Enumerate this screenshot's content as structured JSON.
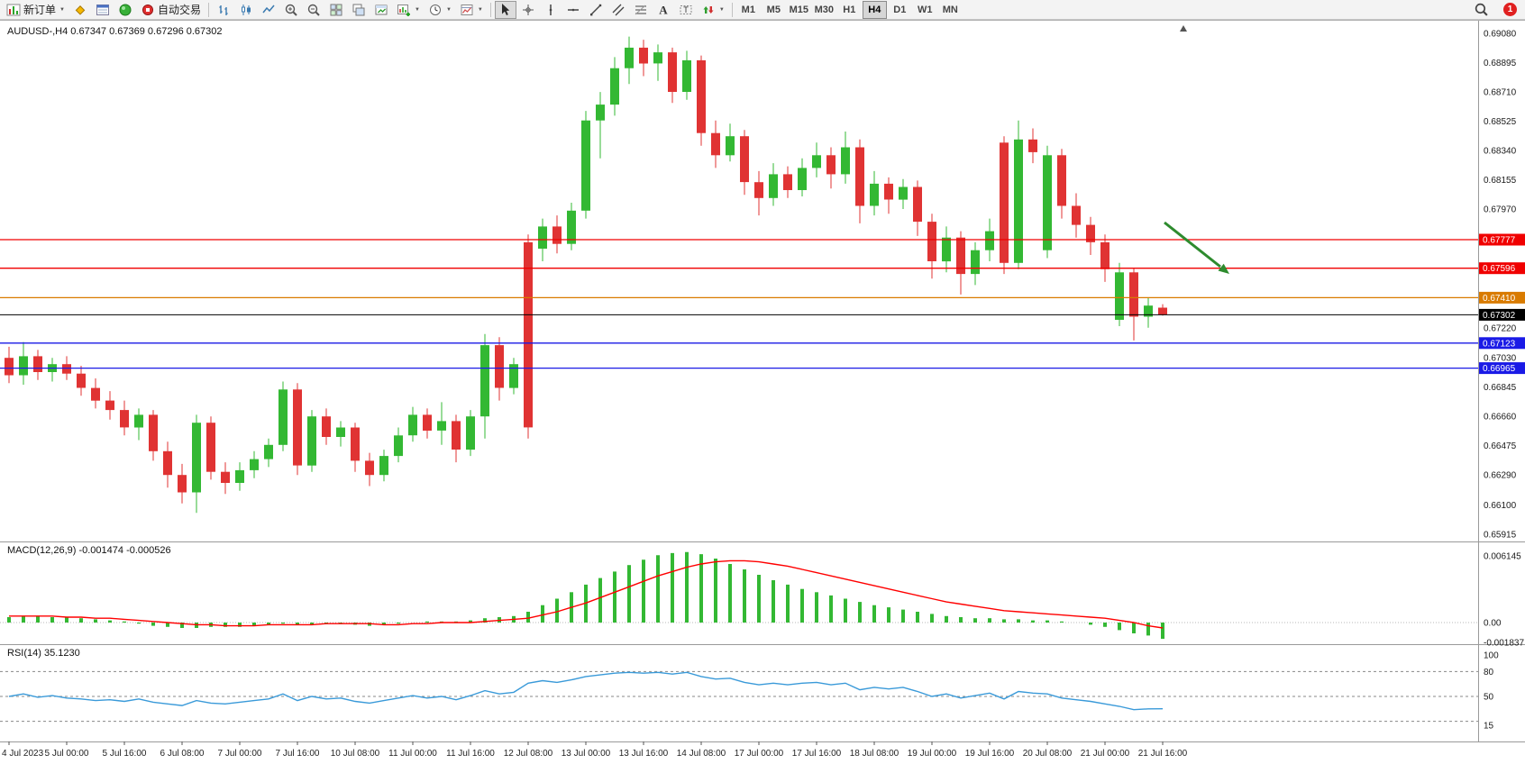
{
  "toolbar": {
    "new_order_label": "新订单",
    "auto_trading_label": "自动交易",
    "timeframes": [
      "M1",
      "M5",
      "M15",
      "M30",
      "H1",
      "H4",
      "D1",
      "W1",
      "MN"
    ],
    "active_timeframe": "H4",
    "notification_count": "1",
    "icon_names": [
      "new-order-icon",
      "market-watch-icon",
      "data-window-icon",
      "navigator-icon",
      "auto-trading-icon",
      "bar-chart-icon",
      "candlestick-chart-icon",
      "line-chart-icon",
      "zoom-in-icon",
      "zoom-out-icon",
      "tile-windows-icon",
      "cascade-windows-icon",
      "arrange-windows-icon",
      "new-chart-icon",
      "periods-icon",
      "templates-icon",
      "cursor-icon",
      "crosshair-icon",
      "vertical-line-icon",
      "horizontal-line-icon",
      "trendline-icon",
      "channel-icon",
      "fibonacci-icon",
      "text-icon",
      "label-icon",
      "arrows-icon",
      "search-icon"
    ]
  },
  "chart_data": {
    "type": "candlestick",
    "title": "AUDUSD-,H4 0.67347 0.67369 0.67296 0.67302",
    "symbol": "AUDUSD-",
    "timeframe": "H4",
    "current_bar": {
      "open": 0.67347,
      "high": 0.67369,
      "low": 0.67296,
      "close": 0.67302
    },
    "colors": {
      "up": "#33b833",
      "down": "#e03333",
      "macd_histogram": "#33b833",
      "macd_signal": "#ff0000",
      "rsi_line": "#3a9ad9",
      "hline_red": "#f00000",
      "hline_orange": "#d97b00",
      "hline_blue": "#1a1ae6",
      "current_price_line": "#000000",
      "annotation_arrow": "#2e8b2e"
    },
    "price_axis_labels": [
      "0.69080",
      "0.68895",
      "0.68710",
      "0.68525",
      "0.68340",
      "0.68155",
      "0.67970",
      "0.67220",
      "0.67030",
      "0.66845",
      "0.66660",
      "0.66475",
      "0.66290",
      "0.66100",
      "0.65915"
    ],
    "hlines": [
      {
        "price": 0.67777,
        "label": "0.67777",
        "color": "#f00000"
      },
      {
        "price": 0.67596,
        "label": "0.67596",
        "color": "#f00000"
      },
      {
        "price": 0.6741,
        "label": "0.67410",
        "color": "#d97b00"
      },
      {
        "price": 0.67302,
        "label": "0.67302",
        "color": "#000000",
        "is_current_price": true
      },
      {
        "price": 0.67123,
        "label": "0.67123",
        "color": "#1a1ae6"
      },
      {
        "price": 0.66965,
        "label": "0.66965",
        "color": "#1a1ae6"
      }
    ],
    "annotation_arrow": {
      "direction": "down-right",
      "color": "#2e8b2e"
    },
    "time_labels": [
      "4 Jul 2023",
      "5 Jul 00:00",
      "5 Jul 16:00",
      "6 Jul 08:00",
      "7 Jul 00:00",
      "7 Jul 16:00",
      "10 Jul 08:00",
      "11 Jul 00:00",
      "11 Jul 16:00",
      "12 Jul 08:00",
      "13 Jul 00:00",
      "13 Jul 16:00",
      "14 Jul 08:00",
      "17 Jul 00:00",
      "17 Jul 16:00",
      "18 Jul 08:00",
      "19 Jul 00:00",
      "19 Jul 16:00",
      "20 Jul 08:00",
      "21 Jul 00:00",
      "21 Jul 16:00"
    ],
    "bars_per_time_label": 4,
    "candles": [
      [
        0.6703,
        0.671,
        0.6687,
        0.6692
      ],
      [
        0.6692,
        0.6713,
        0.6686,
        0.6704
      ],
      [
        0.6704,
        0.6708,
        0.6689,
        0.6694
      ],
      [
        0.6694,
        0.6703,
        0.6688,
        0.6699
      ],
      [
        0.6699,
        0.6704,
        0.6689,
        0.6693
      ],
      [
        0.6693,
        0.6698,
        0.6679,
        0.6684
      ],
      [
        0.6684,
        0.669,
        0.6671,
        0.6676
      ],
      [
        0.6676,
        0.6682,
        0.6664,
        0.667
      ],
      [
        0.667,
        0.6676,
        0.6654,
        0.6659
      ],
      [
        0.6659,
        0.6671,
        0.6651,
        0.6667
      ],
      [
        0.6667,
        0.667,
        0.6638,
        0.6644
      ],
      [
        0.6644,
        0.665,
        0.6621,
        0.6629
      ],
      [
        0.6629,
        0.6636,
        0.6611,
        0.6618
      ],
      [
        0.6618,
        0.6667,
        0.6605,
        0.6662
      ],
      [
        0.6662,
        0.6666,
        0.6626,
        0.6631
      ],
      [
        0.6631,
        0.6637,
        0.6617,
        0.6624
      ],
      [
        0.6624,
        0.6637,
        0.6619,
        0.6632
      ],
      [
        0.6632,
        0.6644,
        0.6627,
        0.6639
      ],
      [
        0.6639,
        0.6652,
        0.6634,
        0.6648
      ],
      [
        0.6648,
        0.6688,
        0.6644,
        0.6683
      ],
      [
        0.6683,
        0.6687,
        0.6629,
        0.6635
      ],
      [
        0.6635,
        0.667,
        0.6631,
        0.6666
      ],
      [
        0.6666,
        0.6671,
        0.6648,
        0.6653
      ],
      [
        0.6653,
        0.6663,
        0.6647,
        0.6659
      ],
      [
        0.6659,
        0.6662,
        0.6631,
        0.6638
      ],
      [
        0.6638,
        0.6643,
        0.6622,
        0.6629
      ],
      [
        0.6629,
        0.6645,
        0.6625,
        0.6641
      ],
      [
        0.6641,
        0.6659,
        0.6637,
        0.6654
      ],
      [
        0.6654,
        0.6672,
        0.665,
        0.6667
      ],
      [
        0.6667,
        0.6671,
        0.6652,
        0.6657
      ],
      [
        0.6657,
        0.6675,
        0.6648,
        0.6663
      ],
      [
        0.6663,
        0.6667,
        0.6637,
        0.6645
      ],
      [
        0.6645,
        0.667,
        0.6641,
        0.6666
      ],
      [
        0.6666,
        0.6718,
        0.6652,
        0.6711
      ],
      [
        0.6711,
        0.6716,
        0.6676,
        0.6684
      ],
      [
        0.6684,
        0.6703,
        0.668,
        0.6699
      ],
      [
        0.6776,
        0.6781,
        0.6652,
        0.6659
      ],
      [
        0.6772,
        0.6791,
        0.6764,
        0.6786
      ],
      [
        0.6786,
        0.6793,
        0.6769,
        0.6775
      ],
      [
        0.6775,
        0.6801,
        0.6771,
        0.6796
      ],
      [
        0.6796,
        0.6859,
        0.6791,
        0.6853
      ],
      [
        0.6853,
        0.6871,
        0.6829,
        0.6863
      ],
      [
        0.6863,
        0.6893,
        0.6856,
        0.6886
      ],
      [
        0.6886,
        0.6906,
        0.6876,
        0.6899
      ],
      [
        0.6899,
        0.6904,
        0.6881,
        0.6889
      ],
      [
        0.6889,
        0.6901,
        0.6878,
        0.6896
      ],
      [
        0.6896,
        0.6899,
        0.6864,
        0.6871
      ],
      [
        0.6871,
        0.6897,
        0.6866,
        0.6891
      ],
      [
        0.6891,
        0.6894,
        0.6837,
        0.6845
      ],
      [
        0.6845,
        0.6853,
        0.6823,
        0.6831
      ],
      [
        0.6831,
        0.6851,
        0.6827,
        0.6843
      ],
      [
        0.6843,
        0.6847,
        0.6806,
        0.6814
      ],
      [
        0.6814,
        0.6821,
        0.6793,
        0.6804
      ],
      [
        0.6804,
        0.6826,
        0.6799,
        0.6819
      ],
      [
        0.6819,
        0.6824,
        0.6804,
        0.6809
      ],
      [
        0.6809,
        0.6829,
        0.6805,
        0.6823
      ],
      [
        0.6823,
        0.6839,
        0.6817,
        0.6831
      ],
      [
        0.6831,
        0.6836,
        0.681,
        0.6819
      ],
      [
        0.6819,
        0.6846,
        0.6813,
        0.6836
      ],
      [
        0.6836,
        0.6841,
        0.6788,
        0.6799
      ],
      [
        0.6799,
        0.6821,
        0.6793,
        0.6813
      ],
      [
        0.6813,
        0.6817,
        0.6794,
        0.6803
      ],
      [
        0.6803,
        0.6816,
        0.6797,
        0.6811
      ],
      [
        0.6811,
        0.6815,
        0.678,
        0.6789
      ],
      [
        0.6789,
        0.6794,
        0.6753,
        0.6764
      ],
      [
        0.6764,
        0.6786,
        0.6757,
        0.6779
      ],
      [
        0.6779,
        0.6783,
        0.6743,
        0.6756
      ],
      [
        0.6756,
        0.6776,
        0.6749,
        0.6771
      ],
      [
        0.6771,
        0.6791,
        0.6764,
        0.6783
      ],
      [
        0.6839,
        0.6843,
        0.6756,
        0.6763
      ],
      [
        0.6763,
        0.6853,
        0.6759,
        0.6841
      ],
      [
        0.6841,
        0.6848,
        0.6826,
        0.6833
      ],
      [
        0.6771,
        0.6837,
        0.6766,
        0.6831
      ],
      [
        0.6831,
        0.6835,
        0.6791,
        0.6799
      ],
      [
        0.6799,
        0.6807,
        0.6779,
        0.6787
      ],
      [
        0.6787,
        0.6792,
        0.6768,
        0.6776
      ],
      [
        0.6776,
        0.6781,
        0.6751,
        0.6759
      ],
      [
        0.6727,
        0.6763,
        0.6723,
        0.6757
      ],
      [
        0.6757,
        0.676,
        0.6714,
        0.6729
      ],
      [
        0.6729,
        0.6741,
        0.6722,
        0.6736
      ],
      [
        0.67347,
        0.67369,
        0.67296,
        0.67302
      ]
    ],
    "macd": {
      "label": "MACD(12,26,9) -0.001474 -0.000526",
      "value": -0.001474,
      "signal_value": -0.000526,
      "axis_labels": [
        "0.006145",
        "0.00",
        "-0.001837"
      ],
      "histogram": [
        0.0005,
        0.0006,
        0.0006,
        0.0005,
        0.0005,
        0.0004,
        0.0003,
        0.0002,
        0.0001,
        -0.0001,
        -0.0003,
        -0.0004,
        -0.0005,
        -0.0005,
        -0.0004,
        -0.0004,
        -0.0004,
        -0.0003,
        -0.0002,
        -0.0001,
        -0.0002,
        -0.0002,
        -0.0001,
        -0.0001,
        -0.0002,
        -0.0003,
        -0.0002,
        -0.0001,
        0.0,
        0.0001,
        0.0001,
        0.0001,
        0.0002,
        0.0004,
        0.0005,
        0.0006,
        0.001,
        0.0016,
        0.0022,
        0.0028,
        0.0035,
        0.0041,
        0.0047,
        0.0053,
        0.0058,
        0.0062,
        0.0064,
        0.0065,
        0.0063,
        0.0059,
        0.0054,
        0.0049,
        0.0044,
        0.0039,
        0.0035,
        0.0031,
        0.0028,
        0.0025,
        0.0022,
        0.0019,
        0.0016,
        0.0014,
        0.0012,
        0.001,
        0.0008,
        0.0006,
        0.0005,
        0.0004,
        0.0004,
        0.0003,
        0.0003,
        0.0002,
        0.0002,
        0.0001,
        0.0,
        -0.0002,
        -0.0004,
        -0.0007,
        -0.001,
        -0.0012,
        -0.0015
      ],
      "signal": [
        0.0006,
        0.0006,
        0.0006,
        0.0006,
        0.0005,
        0.0005,
        0.0004,
        0.0004,
        0.0003,
        0.0002,
        0.0001,
        0.0,
        -0.0001,
        -0.0002,
        -0.0002,
        -0.0003,
        -0.0003,
        -0.0003,
        -0.0002,
        -0.0002,
        -0.0002,
        -0.0002,
        -0.0001,
        -0.0001,
        -0.0001,
        -0.0001,
        -0.0002,
        -0.0002,
        -0.0001,
        -0.0001,
        0.0,
        0.0,
        0.0,
        0.0001,
        0.0002,
        0.0003,
        0.0004,
        0.0007,
        0.001,
        0.0014,
        0.0018,
        0.0023,
        0.0028,
        0.0033,
        0.0038,
        0.0043,
        0.0047,
        0.0051,
        0.0054,
        0.0056,
        0.0057,
        0.0057,
        0.0056,
        0.0054,
        0.0052,
        0.0049,
        0.0046,
        0.0043,
        0.004,
        0.0037,
        0.0034,
        0.0031,
        0.0028,
        0.0025,
        0.0022,
        0.0019,
        0.0017,
        0.0015,
        0.0013,
        0.0011,
        0.001,
        0.0009,
        0.0008,
        0.0007,
        0.0006,
        0.0005,
        0.0004,
        0.0002,
        0.0,
        -0.0003,
        -0.0005
      ]
    },
    "rsi": {
      "label": "RSI(14) 35.1230",
      "value": 35.123,
      "axis_labels": [
        "100",
        "80",
        "50",
        "15"
      ],
      "level_lines": [
        80,
        50,
        20
      ],
      "values": [
        50,
        53,
        49,
        51,
        48,
        47,
        45,
        46,
        44,
        47,
        43,
        41,
        39,
        45,
        42,
        41,
        43,
        45,
        47,
        53,
        45,
        50,
        47,
        48,
        44,
        42,
        45,
        48,
        51,
        48,
        50,
        46,
        51,
        57,
        53,
        55,
        66,
        69,
        67,
        70,
        74,
        76,
        78,
        79,
        78,
        79,
        77,
        79,
        74,
        71,
        72,
        67,
        64,
        66,
        64,
        66,
        67,
        64,
        66,
        58,
        61,
        59,
        61,
        56,
        50,
        53,
        48,
        51,
        54,
        47,
        56,
        54,
        53,
        48,
        46,
        44,
        41,
        38,
        34,
        35,
        35.12
      ]
    }
  }
}
